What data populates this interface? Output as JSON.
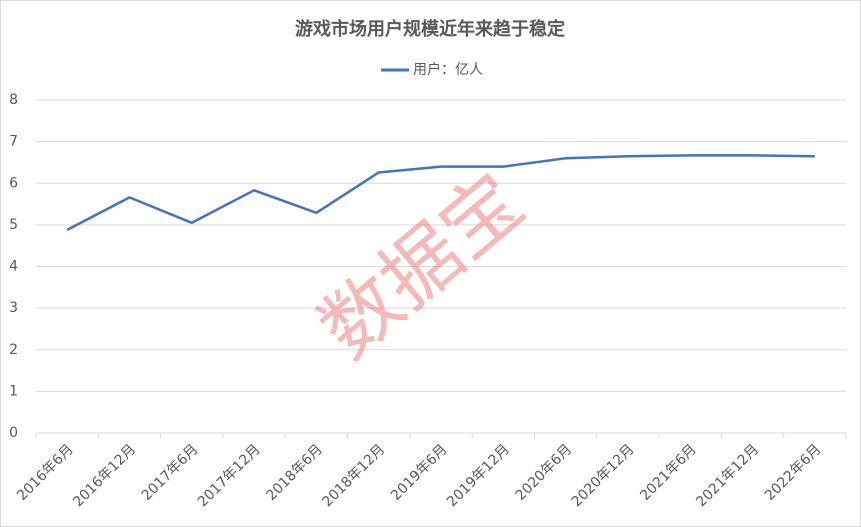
{
  "chart_data": {
    "type": "line",
    "title": "游戏市场用户规模近年来趋于稳定",
    "watermark": "数据宝",
    "categories": [
      "2016年6月",
      "2016年12月",
      "2017年6月",
      "2017年12月",
      "2018年6月",
      "2018年12月",
      "2019年6月",
      "2019年12月",
      "2020年6月",
      "2020年12月",
      "2021年6月",
      "2021年12月",
      "2022年6月"
    ],
    "series": [
      {
        "name": "用户：亿人",
        "color": "#4472c4",
        "values": [
          4.88,
          5.66,
          5.05,
          5.83,
          5.29,
          6.26,
          6.4,
          6.4,
          6.6,
          6.65,
          6.67,
          6.67,
          6.65
        ]
      }
    ],
    "ylim": [
      0,
      8
    ],
    "yticks": [
      0,
      1,
      2,
      3,
      4,
      5,
      6,
      7,
      8
    ],
    "grid": true,
    "legend": "top"
  }
}
